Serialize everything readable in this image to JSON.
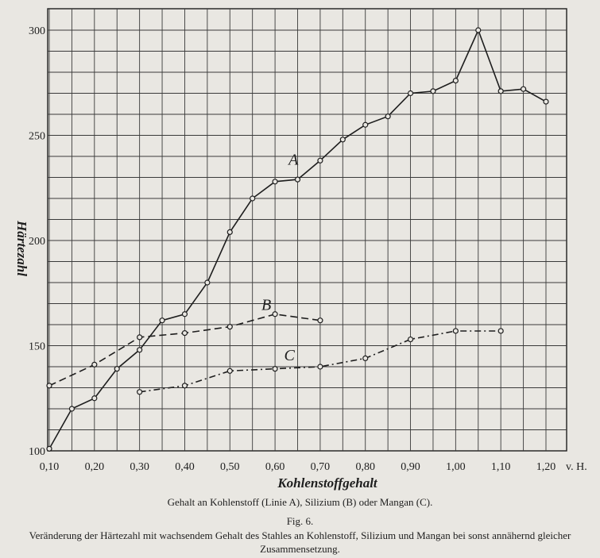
{
  "chart_data": {
    "type": "line",
    "xlabel": "Kohlenstoffgehalt",
    "ylabel": "Härtezahl",
    "x_unit_label": "v. H.",
    "xlim": [
      0.1,
      1.3
    ],
    "ylim": [
      100,
      310
    ],
    "x_ticks": [
      0.1,
      0.2,
      0.3,
      0.4,
      0.5,
      0.6,
      0.7,
      0.8,
      0.9,
      1.0,
      1.1,
      1.2
    ],
    "x_tick_labels": [
      "0,10",
      "0,20",
      "0,30",
      "0,40",
      "0,50",
      "0,60",
      "0,70",
      "0,80",
      "0,90",
      "1,00",
      "1,10",
      "1,20"
    ],
    "y_ticks": [
      100,
      150,
      200,
      250,
      300
    ],
    "y_tick_labels": [
      "100",
      "150",
      "200",
      "250",
      "300"
    ],
    "grid": true,
    "series": [
      {
        "name": "A",
        "line_style": "solid",
        "points": [
          [
            0.1,
            101
          ],
          [
            0.15,
            120
          ],
          [
            0.2,
            125
          ],
          [
            0.25,
            139
          ],
          [
            0.3,
            148
          ],
          [
            0.35,
            162
          ],
          [
            0.4,
            165
          ],
          [
            0.45,
            180
          ],
          [
            0.5,
            204
          ],
          [
            0.55,
            220
          ],
          [
            0.6,
            228
          ],
          [
            0.65,
            229
          ],
          [
            0.7,
            238
          ],
          [
            0.75,
            248
          ],
          [
            0.8,
            255
          ],
          [
            0.85,
            259
          ],
          [
            0.9,
            270
          ],
          [
            0.95,
            271
          ],
          [
            1.0,
            276
          ],
          [
            1.05,
            300
          ],
          [
            1.1,
            271
          ],
          [
            1.15,
            272
          ],
          [
            1.2,
            266
          ]
        ]
      },
      {
        "name": "B",
        "line_style": "dashed",
        "points": [
          [
            0.1,
            131
          ],
          [
            0.2,
            141
          ],
          [
            0.3,
            154
          ],
          [
            0.4,
            156
          ],
          [
            0.5,
            159
          ],
          [
            0.6,
            165
          ],
          [
            0.7,
            162
          ]
        ]
      },
      {
        "name": "C",
        "line_style": "dashdot",
        "points": [
          [
            0.3,
            128
          ],
          [
            0.4,
            131
          ],
          [
            0.5,
            138
          ],
          [
            0.6,
            139
          ],
          [
            0.7,
            140
          ],
          [
            0.8,
            144
          ],
          [
            0.9,
            153
          ],
          [
            1.0,
            157
          ],
          [
            1.1,
            157
          ]
        ]
      }
    ]
  },
  "captions": {
    "legend_line": "Gehalt an Kohlenstoff (Linie A), Silizium (B) oder Mangan (C).",
    "figure_number": "Fig. 6.",
    "description": "Veränderung der Härtezahl mit wachsendem Gehalt des Stahles an Kohlenstoff, Silizium und Mangan bei sonst annähernd gleicher Zusammensetzung."
  },
  "colors": {
    "ink": "#1e1e1e",
    "grid": "#3a3a3a",
    "paper": "#e9e7e2"
  }
}
